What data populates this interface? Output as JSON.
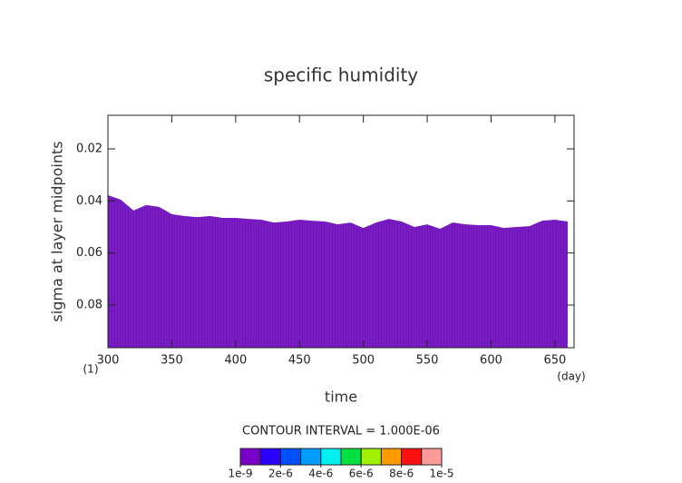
{
  "chart_data": {
    "type": "area",
    "title": "specific humidity",
    "xlabel": "time",
    "ylabel": "sigma at layer midpoints",
    "x_unit_note": "(1)",
    "x_unit": "(day)",
    "contour_note": "CONTOUR INTERVAL = 1.000E-06",
    "x": [
      300,
      310,
      320,
      330,
      340,
      350,
      360,
      370,
      380,
      390,
      400,
      410,
      420,
      430,
      440,
      450,
      460,
      470,
      480,
      490,
      500,
      510,
      520,
      530,
      540,
      550,
      560,
      570,
      580,
      590,
      600,
      610,
      620,
      630,
      640,
      650,
      660
    ],
    "series": [
      {
        "color": "#7a1cc4",
        "values": [
          0.0378,
          0.0395,
          0.0437,
          0.0416,
          0.0423,
          0.0451,
          0.0458,
          0.0462,
          0.0458,
          0.0465,
          0.0465,
          0.0469,
          0.0472,
          0.0483,
          0.0479,
          0.0472,
          0.0476,
          0.0479,
          0.049,
          0.0483,
          0.0504,
          0.0483,
          0.0469,
          0.0479,
          0.05,
          0.049,
          0.0507,
          0.0483,
          0.049,
          0.0493,
          0.0493,
          0.0504,
          0.05,
          0.0497,
          0.0476,
          0.0472,
          0.0479
        ]
      }
    ],
    "xlim": [
      300,
      665
    ],
    "ylim": [
      0.0964,
      0.0071
    ],
    "y_inverted": true,
    "xticks": [
      300,
      350,
      400,
      450,
      500,
      550,
      600,
      650
    ],
    "yticks": [
      0.02,
      0.04,
      0.06,
      0.08
    ],
    "colorbar": {
      "colors": [
        "#7a00c8",
        "#2a00ff",
        "#0050ff",
        "#009cff",
        "#00f0f0",
        "#00e040",
        "#a0f000",
        "#ff9a00",
        "#ff1010",
        "#ff9a9a"
      ],
      "levels": [
        1e-09,
        1e-06,
        2e-06,
        3e-06,
        4e-06,
        5e-06,
        6e-06,
        7e-06,
        8e-06,
        9e-06,
        1e-05
      ],
      "ticks": [
        {
          "value": 1e-09,
          "label": "1e-9"
        },
        {
          "value": 2e-06,
          "label": "2e-6"
        },
        {
          "value": 4e-06,
          "label": "4e-6"
        },
        {
          "value": 6e-06,
          "label": "6e-6"
        },
        {
          "value": 8e-06,
          "label": "8e-6"
        },
        {
          "value": 1e-05,
          "label": "1e-5"
        }
      ]
    }
  }
}
